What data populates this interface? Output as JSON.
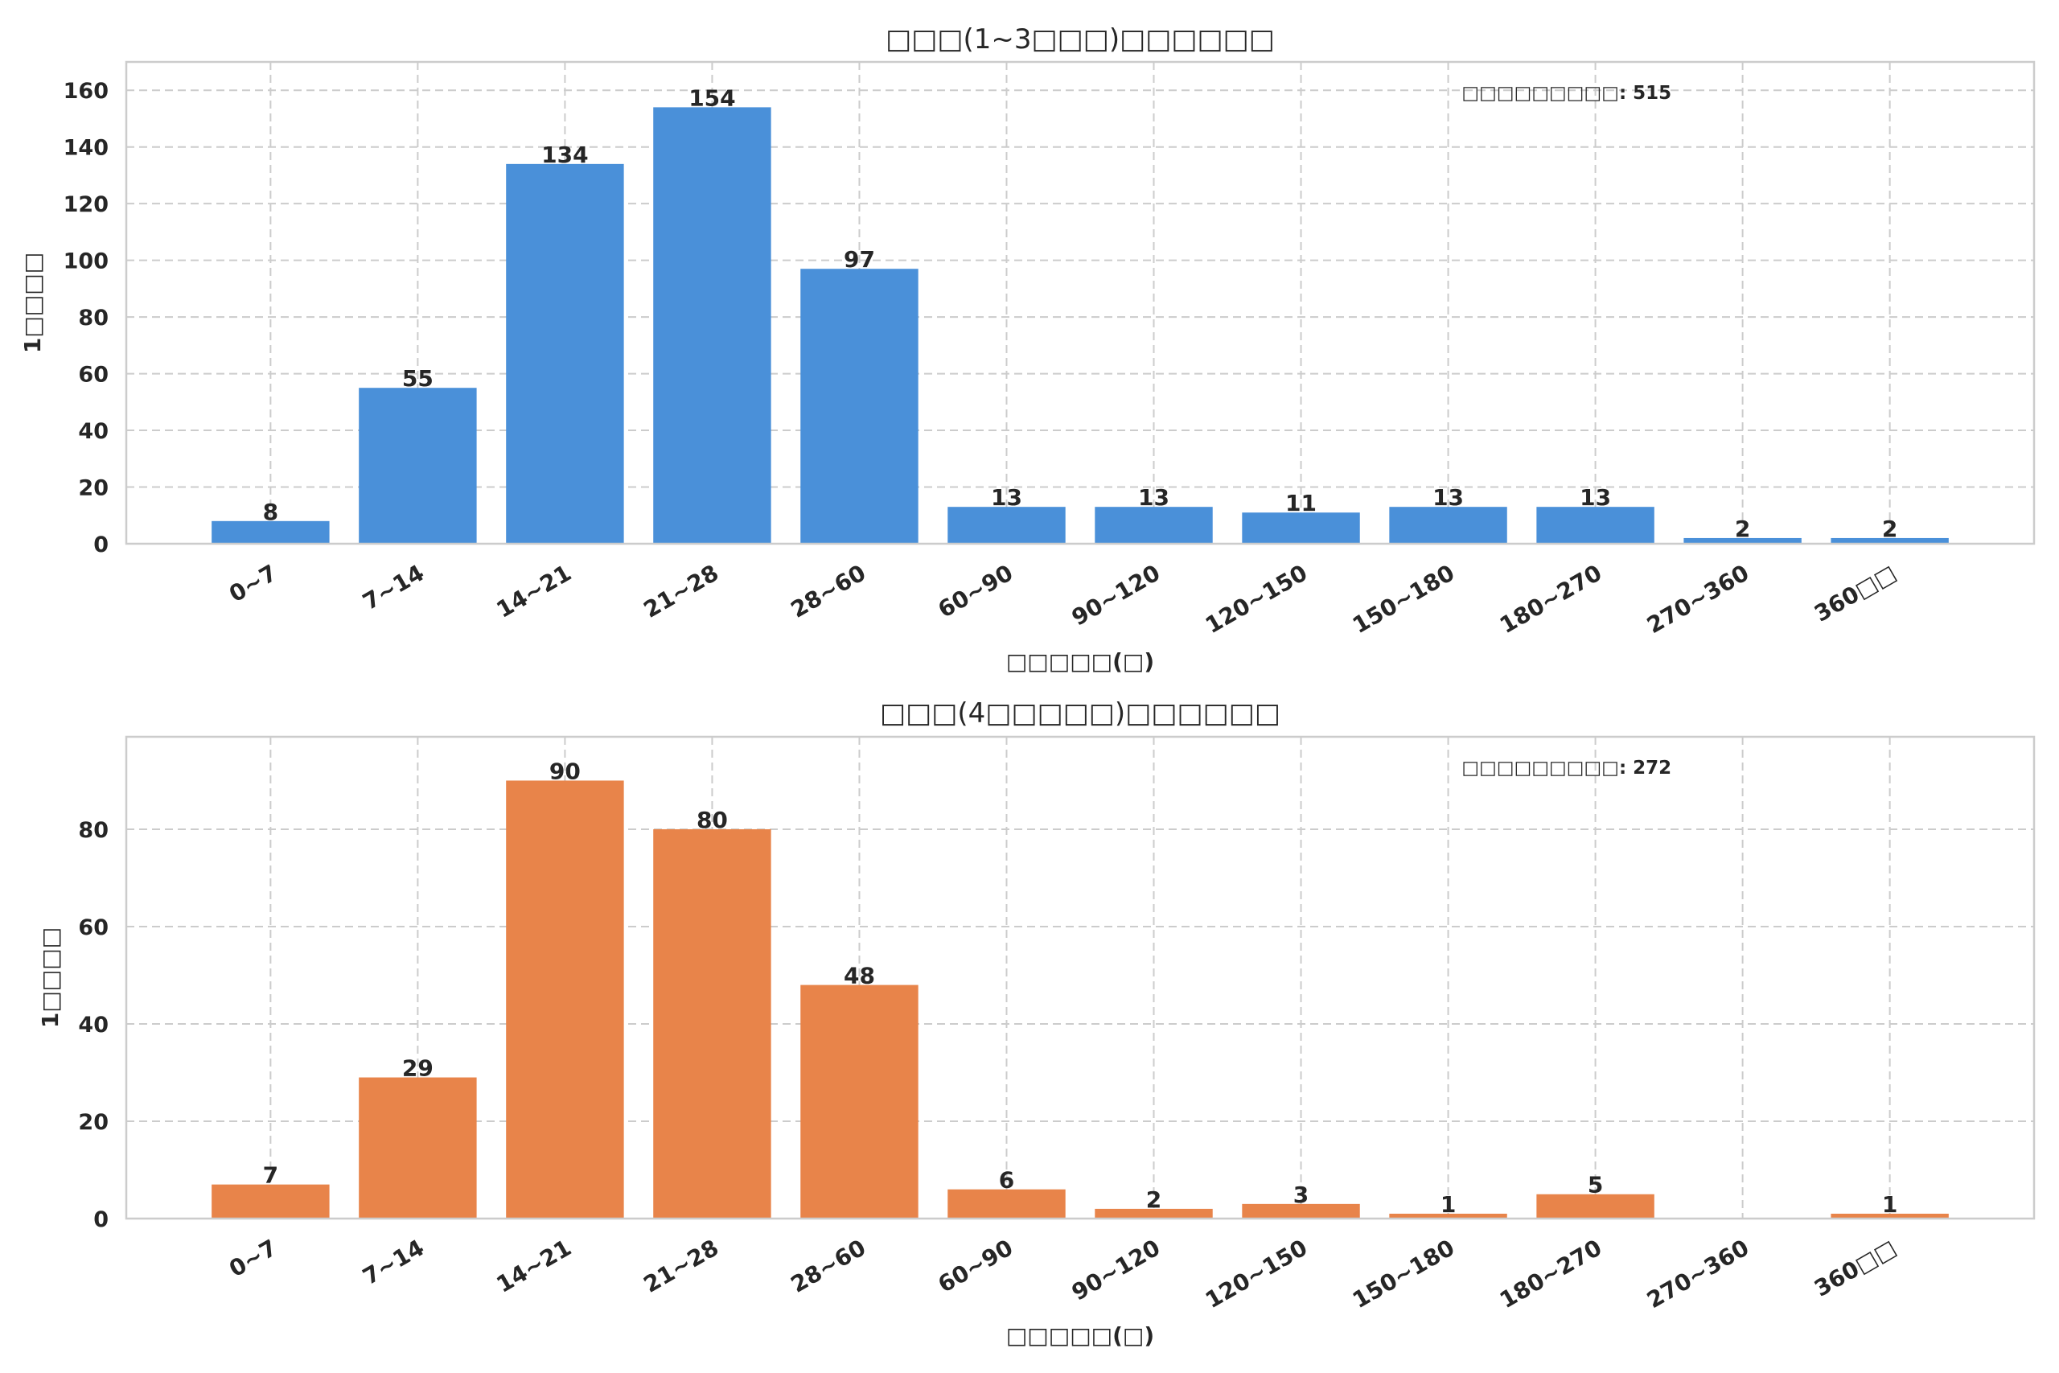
{
  "chart_data": [
    {
      "type": "bar",
      "title": "□□□(1~3□□□)□□□□□□",
      "xlabel": "□□□□□(□)",
      "ylabel": "1□□□□",
      "categories": [
        "0~7",
        "7~14",
        "14~21",
        "21~28",
        "28~60",
        "60~90",
        "90~120",
        "120~150",
        "150~180",
        "180~270",
        "270~360",
        "360□□"
      ],
      "values": [
        8,
        55,
        134,
        154,
        97,
        13,
        13,
        11,
        13,
        13,
        2,
        2
      ],
      "ylim": [
        0,
        170
      ],
      "yticks": [
        0,
        20,
        40,
        60,
        80,
        100,
        120,
        140,
        160
      ],
      "annotation": "□□□□□□□□□: 515",
      "color": "#4a90d9",
      "grid": true
    },
    {
      "type": "bar",
      "title": "□□□(4□□□□□)□□□□□□",
      "xlabel": "□□□□□(□)",
      "ylabel": "1□□□□",
      "categories": [
        "0~7",
        "7~14",
        "14~21",
        "21~28",
        "28~60",
        "60~90",
        "90~120",
        "120~150",
        "150~180",
        "180~270",
        "270~360",
        "360□□"
      ],
      "values": [
        7,
        29,
        90,
        80,
        48,
        6,
        2,
        3,
        1,
        5,
        0,
        1
      ],
      "ylim": [
        0,
        99
      ],
      "yticks": [
        0,
        20,
        40,
        60,
        80
      ],
      "annotation": "□□□□□□□□□: 272",
      "color": "#e8844a",
      "grid": true
    }
  ]
}
